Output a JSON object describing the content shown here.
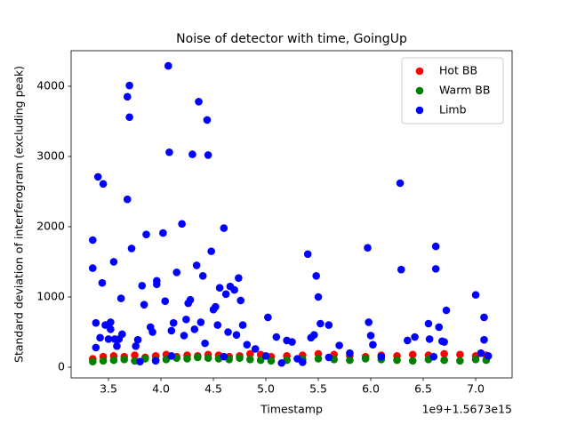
{
  "chart_data": {
    "type": "scatter",
    "title": "Noise of detector with time, GoingUp",
    "xlabel": "Timestamp",
    "ylabel": "Standard deviation of interferogram (excluding peak)",
    "x_offset_label": "1e9+1.5673e15",
    "xlim": [
      3.144,
      7.347
    ],
    "ylim": [
      -152,
      4506
    ],
    "xticks": [
      3.5,
      {
        "value": 4,
        "label": "4.0"
      },
      4.5,
      {
        "value": 5,
        "label": "5.0"
      },
      5.5,
      {
        "value": 6,
        "label": "6.0"
      },
      6.5,
      {
        "value": 7,
        "label": "7.0"
      }
    ],
    "yticks": [
      0,
      1000,
      2000,
      3000,
      4000
    ],
    "legend": "upper right",
    "grid": false,
    "series": [
      {
        "name": "Hot BB",
        "color": "#ff0000",
        "x": [
          3.35,
          3.45,
          3.55,
          3.65,
          3.75,
          3.85,
          3.95,
          4.05,
          4.15,
          4.25,
          4.35,
          4.45,
          4.55,
          4.65,
          4.75,
          4.85,
          4.95,
          5.05,
          5.2,
          5.35,
          5.5,
          5.65,
          5.8,
          5.95,
          6.1,
          6.25,
          6.4,
          6.55,
          6.7,
          6.85,
          7.0,
          7.1
        ],
        "values": [
          120,
          150,
          160,
          150,
          170,
          140,
          160,
          180,
          150,
          170,
          160,
          180,
          170,
          150,
          160,
          190,
          180,
          150,
          160,
          170,
          190,
          180,
          160,
          150,
          170,
          160,
          180,
          170,
          190,
          180,
          160,
          170
        ]
      },
      {
        "name": "Warm BB",
        "color": "#008000",
        "x": [
          3.35,
          3.45,
          3.55,
          3.65,
          3.75,
          3.85,
          3.95,
          4.05,
          4.15,
          4.25,
          4.35,
          4.45,
          4.55,
          4.65,
          4.75,
          4.85,
          4.95,
          5.05,
          5.2,
          5.35,
          5.5,
          5.65,
          5.8,
          5.95,
          6.1,
          6.25,
          6.4,
          6.55,
          6.7,
          6.85,
          7.0,
          7.1
        ],
        "values": [
          80,
          90,
          100,
          110,
          90,
          120,
          100,
          110,
          130,
          120,
          140,
          130,
          120,
          110,
          130,
          110,
          100,
          90,
          100,
          110,
          120,
          110,
          100,
          120,
          110,
          100,
          90,
          110,
          100,
          90,
          110,
          100
        ]
      },
      {
        "name": "Limb",
        "color": "#0000ff",
        "x": [
          3.35,
          3.35,
          3.38,
          3.4,
          3.38,
          3.42,
          3.44,
          3.45,
          3.47,
          3.5,
          3.52,
          3.52,
          3.55,
          3.56,
          3.58,
          3.6,
          3.62,
          3.63,
          3.68,
          3.7,
          3.7,
          3.68,
          3.72,
          3.76,
          3.78,
          3.82,
          3.84,
          3.86,
          3.9,
          3.92,
          3.96,
          3.96,
          4.02,
          4.04,
          4.07,
          4.08,
          4.1,
          4.12,
          4.15,
          4.2,
          4.22,
          4.24,
          4.26,
          4.28,
          4.3,
          4.32,
          4.34,
          4.36,
          4.38,
          4.4,
          4.42,
          4.44,
          4.45,
          4.48,
          4.5,
          4.52,
          4.54,
          4.56,
          4.6,
          4.62,
          4.64,
          4.66,
          4.7,
          4.72,
          4.74,
          4.76,
          4.78,
          4.82,
          4.9,
          5.02,
          5.1,
          5.2,
          5.25,
          5.4,
          5.43,
          5.46,
          5.48,
          5.5,
          5.52,
          5.6,
          5.7,
          5.8,
          5.97,
          5.98,
          6.0,
          6.02,
          6.28,
          6.29,
          6.35,
          6.42,
          6.55,
          6.56,
          6.62,
          6.62,
          6.65,
          6.7,
          6.72,
          6.68,
          7.0,
          7.08,
          7.08,
          7.12,
          5.0,
          5.3,
          5.6,
          6.1,
          6.6,
          7.05,
          3.8,
          3.95,
          4.1,
          4.6,
          5.15,
          5.35
        ],
        "values": [
          1810,
          1410,
          630,
          2710,
          280,
          420,
          1200,
          2610,
          600,
          400,
          640,
          540,
          1500,
          400,
          300,
          400,
          980,
          470,
          3850,
          4010,
          3560,
          2390,
          1690,
          300,
          390,
          1160,
          890,
          1890,
          570,
          500,
          1230,
          1180,
          1910,
          940,
          4290,
          3060,
          520,
          630,
          1350,
          2040,
          450,
          680,
          910,
          960,
          3030,
          540,
          1450,
          3780,
          640,
          1300,
          340,
          3520,
          3020,
          1650,
          820,
          860,
          600,
          1130,
          1980,
          1040,
          500,
          1150,
          1100,
          460,
          1270,
          950,
          600,
          320,
          260,
          710,
          430,
          380,
          360,
          1610,
          420,
          460,
          1300,
          1000,
          620,
          600,
          310,
          200,
          1700,
          640,
          450,
          320,
          2620,
          1390,
          380,
          430,
          620,
          400,
          1720,
          1400,
          570,
          360,
          810,
          370,
          1030,
          710,
          390,
          160,
          160,
          120,
          140,
          150,
          150,
          200,
          80,
          90,
          160,
          150,
          60,
          70
        ]
      }
    ]
  }
}
